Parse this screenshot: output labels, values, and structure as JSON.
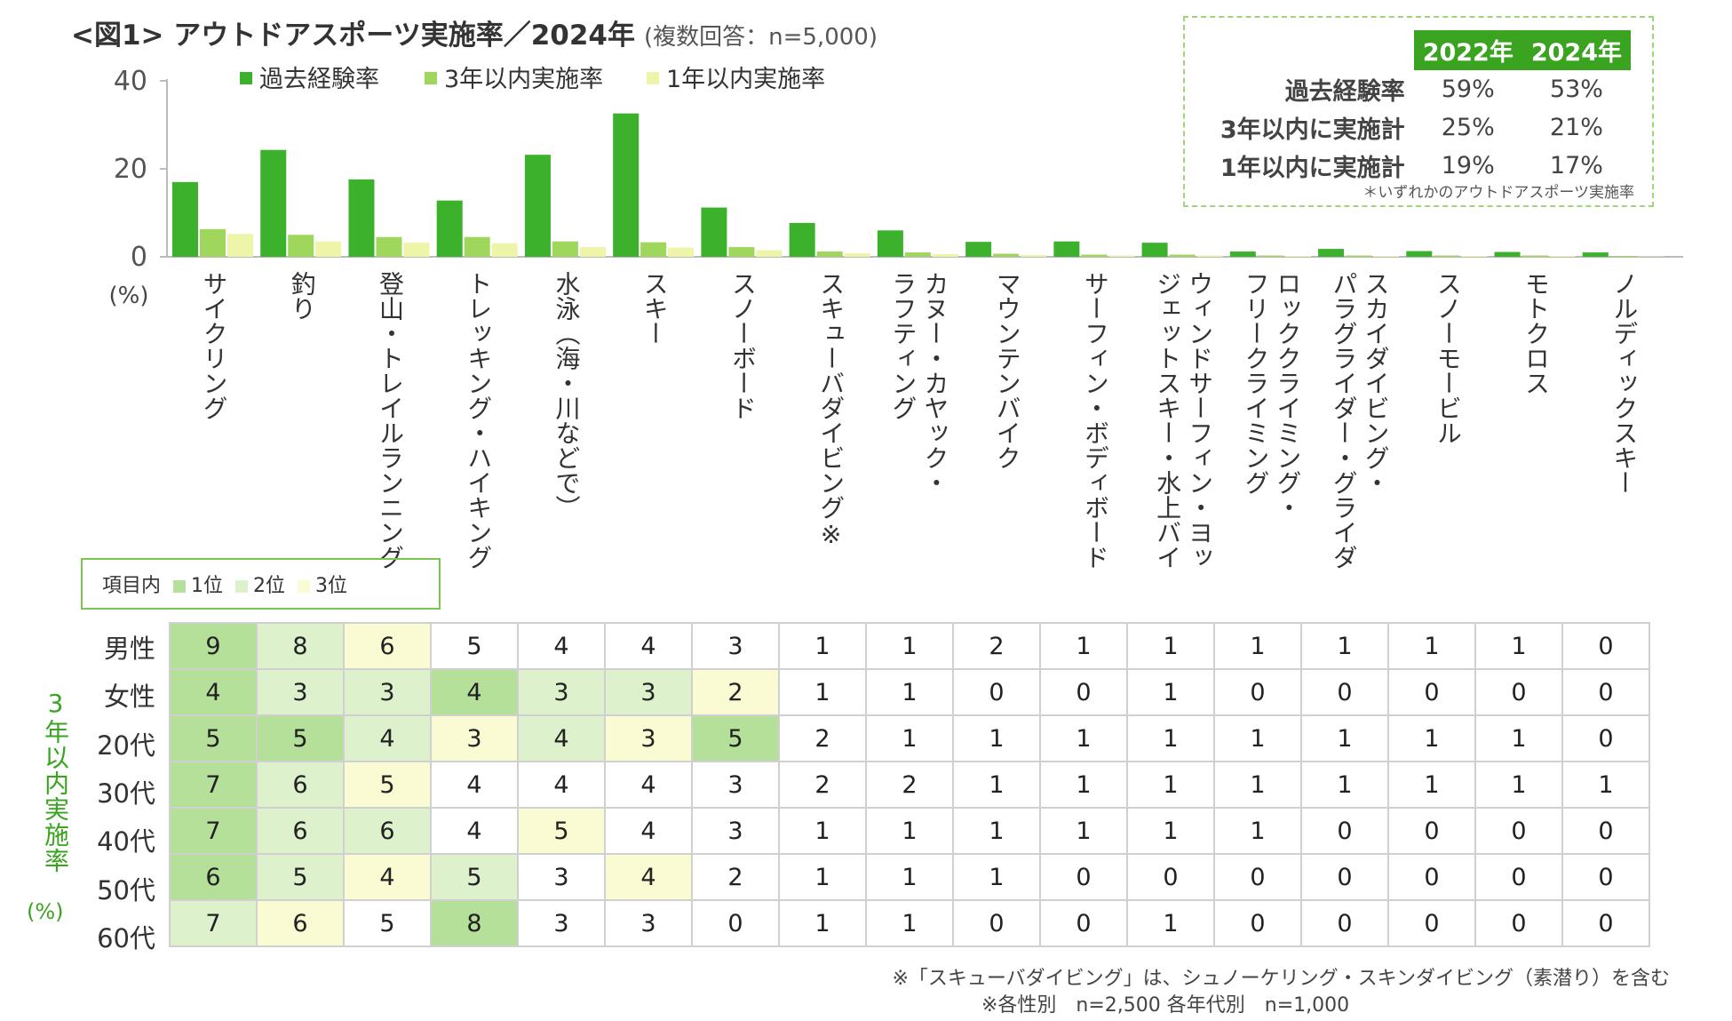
{
  "title": "<図1> アウトドアスポーツ実施率／2024年",
  "subtitle": "(複数回答：n=5,000)",
  "chart_data": {
    "type": "bar",
    "categories": [
      "サイクリング",
      "釣り",
      "登山・トレイルランニング",
      "トレッキング・ハイキング",
      "水泳（海・川などで）",
      "スキー",
      "スノーボード",
      "スキューバダイビング※",
      "カヌー・カヤック・ラフティング",
      "マウンテンバイク",
      "サーフィン・ボディボード",
      "ウィンドサーフィン・ヨット・ジェットスキー・水上バイク",
      "ロッククライミング・フリークライミング",
      "スカイダイビング・パラグライダー・グライダー",
      "スノーモービル",
      "モトクロス",
      "ノルディックスキー"
    ],
    "label_lines": [
      [
        "サイクリング"
      ],
      [
        "釣り"
      ],
      [
        "登山・トレイルランニング"
      ],
      [
        "トレッキング・ハイキング"
      ],
      [
        "水泳（海・川などで）"
      ],
      [
        "スキー"
      ],
      [
        "スノーボード"
      ],
      [
        "スキューバダイビング※"
      ],
      [
        "カヌー・カヤック・",
        "ラフティング"
      ],
      [
        "マウンテンバイク"
      ],
      [
        "サーフィン・ボディボード"
      ],
      [
        "ウィンドサーフィン・ヨット・",
        "ジェットスキー・水上バイク"
      ],
      [
        "ロッククライミング・",
        "フリークライミング"
      ],
      [
        "スカイダイビング・",
        "パラグライダー・グライダー"
      ],
      [
        "スノーモービル"
      ],
      [
        "モトクロス"
      ],
      [
        "ノルディックスキー"
      ]
    ],
    "series": [
      {
        "name": "過去経験率",
        "color": "#3cb22c",
        "values": [
          17,
          24.3,
          17.6,
          12.8,
          23.2,
          32.6,
          11.2,
          7.7,
          6,
          3.4,
          3.5,
          3.2,
          1.2,
          1.8,
          1.3,
          1.1,
          1
        ]
      },
      {
        "name": "3年以内実施率",
        "color": "#9fd65c",
        "values": [
          6.3,
          5,
          4.5,
          4.5,
          3.5,
          3.3,
          2.2,
          1.2,
          1,
          0.7,
          0.5,
          0.5,
          0.3,
          0.3,
          0.3,
          0.3,
          0.2
        ]
      },
      {
        "name": "1年以内実施率",
        "color": "#eef5a8",
        "values": [
          5.2,
          3.5,
          3.2,
          3.1,
          2.2,
          2.1,
          1.5,
          0.8,
          0.6,
          0.4,
          0.3,
          0.3,
          0.2,
          0.2,
          0.2,
          0.2,
          0.1
        ]
      }
    ],
    "ylim": [
      0,
      40
    ],
    "yticks": [
      0,
      20,
      40
    ],
    "ylabel": "(%)",
    "grid": true,
    "legend_position": "top-left"
  },
  "summary": {
    "headers": [
      "2022年",
      "2024年"
    ],
    "rows": [
      {
        "label": "過去経験率",
        "v2022": "59%",
        "v2024": "53%"
      },
      {
        "label": "3年以内に実施計",
        "v2022": "25%",
        "v2024": "21%"
      },
      {
        "label": "1年以内に実施計",
        "v2022": "19%",
        "v2024": "17%"
      }
    ],
    "note": "＊いずれかのアウトドアスポーツ実施率"
  },
  "rank_legend": {
    "label": "項目内",
    "items": [
      {
        "text": "1位",
        "color": "#b5e09a"
      },
      {
        "text": "2位",
        "color": "#dcf1cc"
      },
      {
        "text": "3位",
        "color": "#fbfbd3"
      }
    ]
  },
  "table": {
    "side_label": "3年以内実施率",
    "side_unit": "(%)",
    "rows": [
      {
        "label": "男性",
        "values": [
          9,
          8,
          6,
          5,
          4,
          4,
          3,
          1,
          1,
          2,
          1,
          1,
          1,
          1,
          1,
          1,
          0
        ],
        "ranks": [
          1,
          2,
          3,
          0,
          0,
          0,
          0,
          0,
          0,
          0,
          0,
          0,
          0,
          0,
          0,
          0,
          0
        ]
      },
      {
        "label": "女性",
        "values": [
          4,
          3,
          3,
          4,
          3,
          3,
          2,
          1,
          1,
          0,
          0,
          1,
          0,
          0,
          0,
          0,
          0
        ],
        "ranks": [
          1,
          2,
          2,
          1,
          2,
          2,
          3,
          0,
          0,
          0,
          0,
          0,
          0,
          0,
          0,
          0,
          0
        ]
      },
      {
        "label": "20代",
        "values": [
          5,
          5,
          4,
          3,
          4,
          3,
          5,
          2,
          1,
          1,
          1,
          1,
          1,
          1,
          1,
          1,
          0
        ],
        "ranks": [
          1,
          1,
          2,
          3,
          2,
          3,
          1,
          0,
          0,
          0,
          0,
          0,
          0,
          0,
          0,
          0,
          0
        ]
      },
      {
        "label": "30代",
        "values": [
          7,
          6,
          5,
          4,
          4,
          4,
          3,
          2,
          2,
          1,
          1,
          1,
          1,
          1,
          1,
          1,
          1
        ],
        "ranks": [
          1,
          2,
          3,
          0,
          0,
          0,
          0,
          0,
          0,
          0,
          0,
          0,
          0,
          0,
          0,
          0,
          0
        ]
      },
      {
        "label": "40代",
        "values": [
          7,
          6,
          6,
          4,
          5,
          4,
          3,
          1,
          1,
          1,
          1,
          1,
          1,
          0,
          0,
          0,
          0
        ],
        "ranks": [
          1,
          2,
          2,
          0,
          3,
          0,
          0,
          0,
          0,
          0,
          0,
          0,
          0,
          0,
          0,
          0,
          0
        ]
      },
      {
        "label": "50代",
        "values": [
          6,
          5,
          4,
          5,
          3,
          4,
          2,
          1,
          1,
          1,
          0,
          0,
          0,
          0,
          0,
          0,
          0
        ],
        "ranks": [
          1,
          2,
          3,
          2,
          0,
          3,
          0,
          0,
          0,
          0,
          0,
          0,
          0,
          0,
          0,
          0,
          0
        ]
      },
      {
        "label": "60代",
        "values": [
          7,
          6,
          5,
          8,
          3,
          3,
          0,
          1,
          1,
          0,
          0,
          1,
          0,
          0,
          0,
          0,
          0
        ],
        "ranks": [
          2,
          3,
          0,
          1,
          0,
          0,
          0,
          0,
          0,
          0,
          0,
          0,
          0,
          0,
          0,
          0,
          0
        ]
      }
    ]
  },
  "footnotes": [
    "※「スキューバダイビング」は、シュノーケリング・スキンダイビング（素潜り）を含む",
    "※各性別　n=2,500 各年代別　n=1,000"
  ]
}
